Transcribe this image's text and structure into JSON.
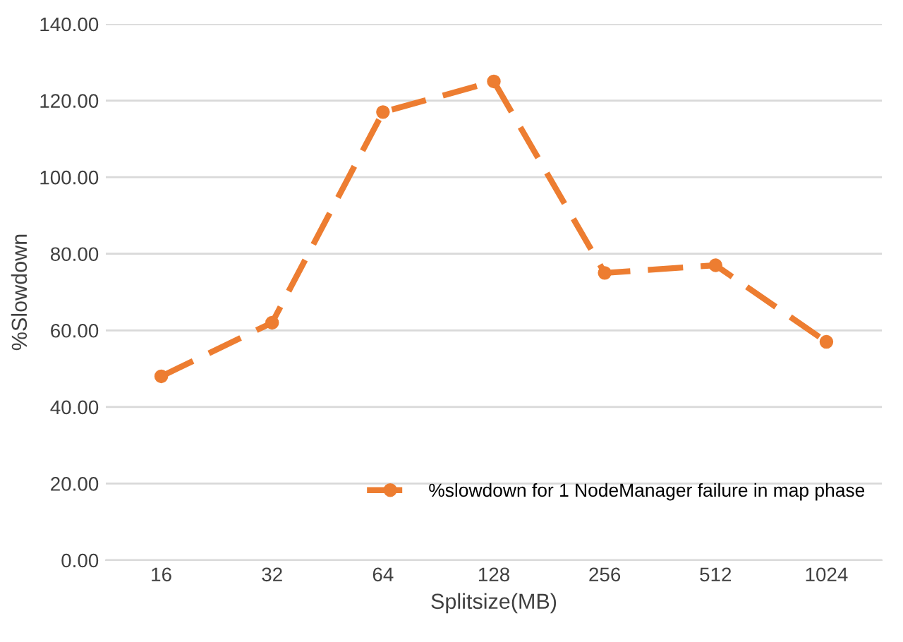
{
  "chart_data": {
    "type": "line",
    "xlabel": "Splitsize(MB)",
    "ylabel": "%Slowdown",
    "categories": [
      "16",
      "32",
      "64",
      "128",
      "256",
      "512",
      "1024"
    ],
    "series": [
      {
        "name": "%slowdown for 1 NodeManager failure in map phase",
        "color": "#ed7d31",
        "values": [
          48,
          62,
          117,
          125,
          75,
          77,
          57
        ]
      }
    ],
    "ylim": [
      0,
      140
    ],
    "yticks": [
      {
        "value": 0,
        "label": "0.00"
      },
      {
        "value": 20,
        "label": "20.00"
      },
      {
        "value": 40,
        "label": "40.00"
      },
      {
        "value": 60,
        "label": "60.00"
      },
      {
        "value": 80,
        "label": "80.00"
      },
      {
        "value": 100,
        "label": "100.00"
      },
      {
        "value": 120,
        "label": "120.00"
      },
      {
        "value": 140,
        "label": "140.00"
      }
    ],
    "grid": "y",
    "legend": "bottom right",
    "marker": "circle",
    "line_style": "dashed"
  }
}
